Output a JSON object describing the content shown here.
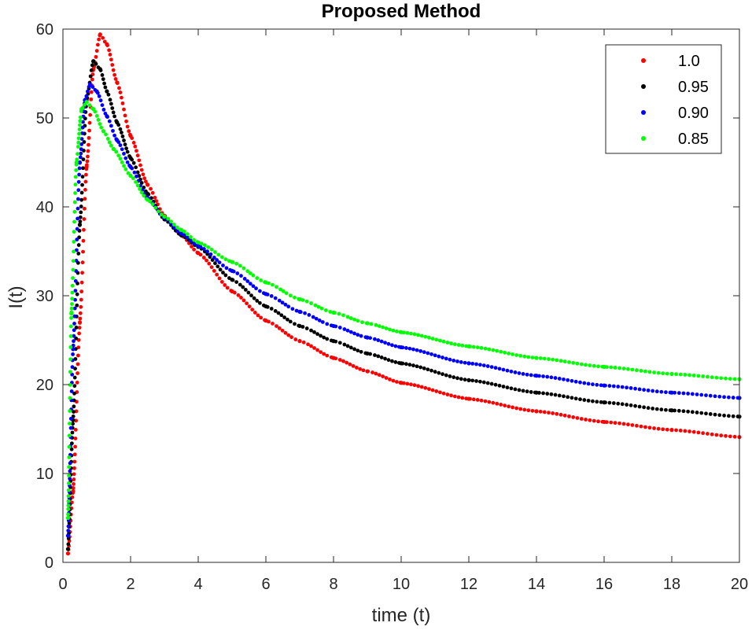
{
  "chart_data": {
    "type": "scatter",
    "title": "Proposed Method",
    "xlabel": "time (t)",
    "ylabel": "I(t)",
    "xlim": [
      0,
      20
    ],
    "ylim": [
      0,
      60
    ],
    "xticks": [
      0,
      2,
      4,
      6,
      8,
      10,
      12,
      14,
      16,
      18,
      20
    ],
    "yticks": [
      0,
      10,
      20,
      30,
      40,
      50,
      60
    ],
    "grid": false,
    "legend_position": "top-right",
    "series": [
      {
        "name": "1.0",
        "color": "#ff0000",
        "x": [
          0.15,
          0.3,
          0.5,
          0.7,
          0.9,
          1.1,
          1.3,
          1.6,
          2.0,
          2.5,
          3.0,
          3.5,
          4.0,
          5.0,
          6.0,
          7.0,
          8.0,
          9.0,
          10.0,
          12.0,
          14.0,
          16.0,
          18.0,
          20.0
        ],
        "y": [
          1.0,
          8.0,
          27.0,
          44.5,
          55.5,
          59.4,
          58.3,
          54.0,
          48.0,
          42.5,
          39.0,
          36.8,
          34.8,
          30.5,
          27.2,
          24.9,
          23.0,
          21.5,
          20.2,
          18.4,
          17.0,
          15.8,
          14.9,
          14.1
        ]
      },
      {
        "name": "0.95",
        "color": "#000000",
        "x": [
          0.15,
          0.3,
          0.5,
          0.7,
          0.9,
          1.1,
          1.3,
          1.6,
          2.0,
          2.5,
          3.0,
          3.5,
          4.0,
          5.0,
          6.0,
          7.0,
          8.0,
          9.0,
          10.0,
          12.0,
          14.0,
          16.0,
          18.0,
          20.0
        ],
        "y": [
          1.5,
          16.0,
          38.0,
          52.0,
          56.4,
          55.5,
          53.0,
          49.5,
          45.5,
          41.5,
          38.6,
          36.8,
          35.5,
          31.8,
          28.8,
          26.6,
          24.9,
          23.5,
          22.4,
          20.5,
          19.1,
          18.0,
          17.1,
          16.4
        ]
      },
      {
        "name": "0.90",
        "color": "#0000ff",
        "x": [
          0.15,
          0.3,
          0.5,
          0.65,
          0.8,
          1.0,
          1.3,
          1.6,
          2.0,
          2.5,
          3.0,
          3.5,
          4.0,
          5.0,
          6.0,
          7.0,
          8.0,
          9.0,
          10.0,
          12.0,
          14.0,
          16.0,
          18.0,
          20.0
        ],
        "y": [
          3.0,
          24.0,
          45.0,
          52.0,
          53.8,
          53.0,
          50.2,
          47.5,
          44.5,
          41.0,
          38.8,
          37.0,
          35.6,
          32.8,
          30.2,
          28.2,
          26.6,
          25.3,
          24.2,
          22.4,
          21.0,
          19.9,
          19.1,
          18.5
        ]
      },
      {
        "name": "0.85",
        "color": "#00ff00",
        "x": [
          0.15,
          0.25,
          0.4,
          0.55,
          0.7,
          0.9,
          1.2,
          1.5,
          2.0,
          2.5,
          3.0,
          3.5,
          4.0,
          5.0,
          6.0,
          7.0,
          8.0,
          9.0,
          10.0,
          12.0,
          14.0,
          16.0,
          18.0,
          20.0
        ],
        "y": [
          5.0,
          28.0,
          45.0,
          51.0,
          51.8,
          51.0,
          48.5,
          46.5,
          43.5,
          40.8,
          38.9,
          37.4,
          36.0,
          33.8,
          31.5,
          29.6,
          28.1,
          26.9,
          25.9,
          24.3,
          23.0,
          22.0,
          21.2,
          20.6
        ]
      }
    ]
  }
}
